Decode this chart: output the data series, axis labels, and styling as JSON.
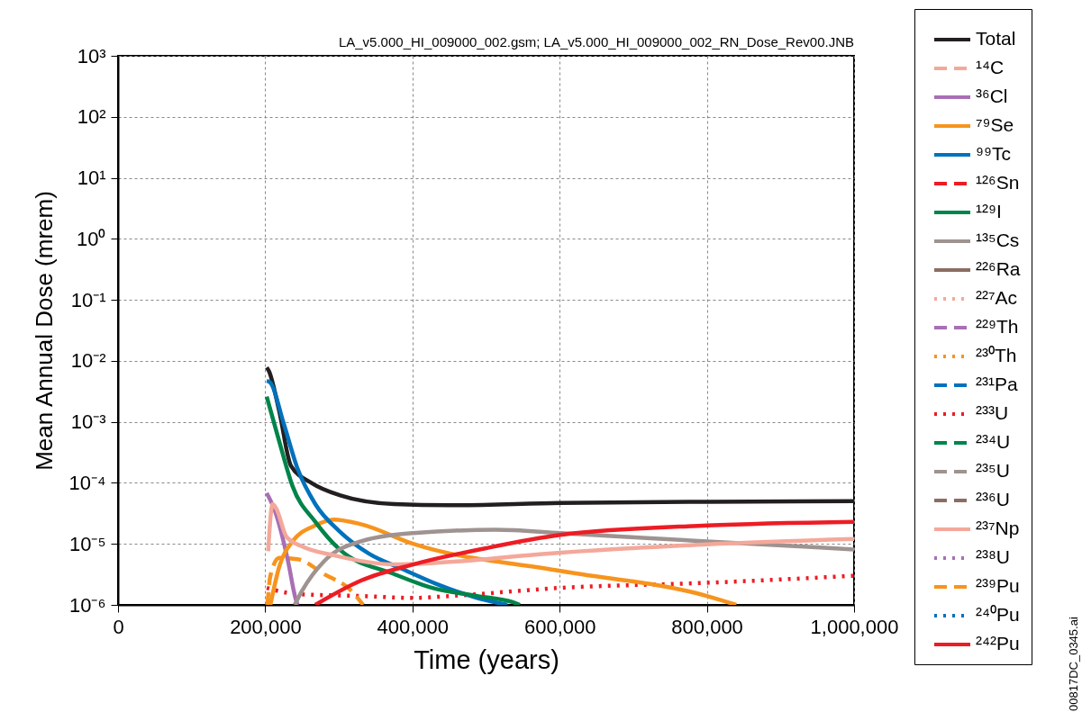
{
  "chart_data": {
    "type": "line",
    "xlabel": "Time (years)",
    "ylabel": "Mean Annual Dose (mrem)",
    "annotations": [
      "LA_v5.000_HI_009000_002.gsm; LA_v5.000_HI_009000_002_RN_Dose_Rev00.JNB",
      "00817DC_0345.ai"
    ],
    "log": "y",
    "grid": true,
    "legend": "right",
    "xlim": [
      0,
      1000000
    ],
    "xticks": [
      0,
      {
        "value": 200000,
        "label": "200,000"
      },
      {
        "value": 400000,
        "label": "400,000"
      },
      {
        "value": 600000,
        "label": "600,000"
      },
      {
        "value": 800000,
        "label": "800,000"
      },
      {
        "value": 1000000,
        "label": "1,000,000"
      }
    ],
    "ylim": [
      1e-06,
      1000
    ],
    "yticks": [
      {
        "value": 1000,
        "label": "10³"
      },
      {
        "value": 100,
        "label": "10²"
      },
      {
        "value": 10,
        "label": "10¹"
      },
      {
        "value": 1,
        "label": "10⁰"
      },
      {
        "value": 0.1,
        "label": "10⁻¹"
      },
      {
        "value": 0.01,
        "label": "10⁻²"
      },
      {
        "value": 0.001,
        "label": "10⁻³"
      },
      {
        "value": 0.0001,
        "label": "10⁻⁴"
      },
      {
        "value": 1e-05,
        "label": "10⁻⁵"
      },
      {
        "value": 1e-06,
        "label": "10⁻⁶"
      }
    ],
    "series": [
      {
        "name": "Total",
        "color": "#231f20",
        "line_style": "solid",
        "x": [
          202000,
          205000,
          219000,
          235000,
          264000,
          301000,
          375000,
          450000,
          601000,
          800000,
          1000000
        ],
        "values": [
          0.0078,
          0.0068,
          0.0015,
          0.00019,
          9.8e-05,
          6.3e-05,
          4.5e-05,
          4.3e-05,
          4.7e-05,
          4.9e-05,
          5e-05
        ]
      },
      {
        "name": "¹⁴C",
        "color": "#f4a89a",
        "line_style": "dashed"
      },
      {
        "name": "³⁶Cl",
        "color": "#a86fb5",
        "line_style": "solid",
        "x": [
          202000,
          213000,
          231000,
          241000,
          244000
        ],
        "values": [
          6.8e-05,
          3.5e-05,
          5.2e-06,
          1.3e-06,
          1e-06
        ]
      },
      {
        "name": "⁷⁹Se",
        "color": "#f7941d",
        "line_style": "solid",
        "x": [
          207000,
          219000,
          237000,
          268000,
          293000,
          330000,
          401000,
          601000,
          800000,
          840000
        ],
        "values": [
          1e-06,
          4.2e-06,
          1.1e-05,
          2e-05,
          2.5e-05,
          2.1e-05,
          1e-05,
          3.6e-06,
          1.4e-06,
          1e-06
        ]
      },
      {
        "name": "⁹⁹Tc",
        "color": "#0072bc",
        "line_style": "solid",
        "x": [
          202000,
          207000,
          225000,
          244000,
          268000,
          301000,
          341000,
          386000,
          433000,
          488000,
          529000
        ],
        "values": [
          0.0047,
          0.0044,
          0.00095,
          0.00017,
          4.5e-05,
          1.6e-05,
          6.9e-06,
          3.9e-06,
          2.2e-06,
          1.3e-06,
          1e-06
        ]
      },
      {
        "name": "¹²⁶Sn",
        "color": "#ed1c24",
        "line_style": "dashed"
      },
      {
        "name": "¹²⁹I",
        "color": "#00844a",
        "line_style": "solid",
        "x": [
          202000,
          219000,
          237000,
          268000,
          301000,
          375000,
          427000,
          488000,
          537000,
          546000
        ],
        "values": [
          0.0026,
          0.00048,
          8.9e-05,
          2.3e-05,
          8.1e-06,
          3.2e-06,
          1.9e-06,
          1.4e-06,
          1.1e-06,
          1e-06
        ]
      },
      {
        "name": "¹³⁵Cs",
        "color": "#9e9390",
        "line_style": "solid",
        "x": [
          240000,
          250000,
          280000,
          330000,
          401000,
          513000,
          601000,
          800000,
          1000000
        ],
        "values": [
          1e-06,
          1.7e-06,
          5.2e-06,
          1.1e-05,
          1.5e-05,
          1.7e-05,
          1.5e-05,
          1.1e-05,
          8.1e-06
        ]
      },
      {
        "name": "²²⁶Ra",
        "color": "#8c6d62",
        "line_style": "solid"
      },
      {
        "name": "²²⁷Ac",
        "color": "#f4a89a",
        "line_style": "dotted"
      },
      {
        "name": "²²⁹Th",
        "color": "#a86fb5",
        "line_style": "dashed"
      },
      {
        "name": "²³⁰Th",
        "color": "#f7941d",
        "line_style": "dotted"
      },
      {
        "name": "²³¹Pa",
        "color": "#0072bc",
        "line_style": "dashed"
      },
      {
        "name": "²³³U",
        "color": "#ed1c24",
        "line_style": "dotted",
        "x": [
          202000,
          244000,
          330000,
          401000,
          452000,
          601000,
          800000,
          1000000
        ],
        "values": [
          1.9e-06,
          1.5e-06,
          1.4e-06,
          1.3e-06,
          1.4e-06,
          1.9e-06,
          2.3e-06,
          3e-06
        ]
      },
      {
        "name": "²³⁴U",
        "color": "#00844a",
        "line_style": "dashed"
      },
      {
        "name": "²³⁵U",
        "color": "#9e9390",
        "line_style": "dashed"
      },
      {
        "name": "²³⁶U",
        "color": "#8c6d62",
        "line_style": "dashed"
      },
      {
        "name": "²³⁷Np",
        "color": "#f4a89a",
        "line_style": "solid",
        "x": [
          204000,
          210000,
          215000,
          229000,
          250000,
          293000,
          375000,
          601000,
          800000,
          1000000
        ],
        "values": [
          7.6e-06,
          4.5e-05,
          3.8e-05,
          1.3e-05,
          9.1e-06,
          6.5e-06,
          4.6e-06,
          7.2e-06,
          9.8e-06,
          1.2e-05
        ]
      },
      {
        "name": "²³⁸U",
        "color": "#a86fb5",
        "line_style": "dotted"
      },
      {
        "name": "²³⁹Pu",
        "color": "#f7941d",
        "line_style": "dashed",
        "x": [
          203000,
          207000,
          219000,
          244000,
          280000,
          317000,
          333000
        ],
        "values": [
          1e-06,
          3e-06,
          5.9e-06,
          5.6e-06,
          3.2e-06,
          1.7e-06,
          1e-06
        ]
      },
      {
        "name": "²⁴⁰Pu",
        "color": "#0072bc",
        "line_style": "dotted"
      },
      {
        "name": "²⁴²Pu",
        "color": "#ed1c24",
        "line_style": "solid",
        "x": [
          268000,
          330000,
          401000,
          500000,
          601000,
          800000,
          1000000
        ],
        "values": [
          1e-06,
          2.5e-06,
          4.6e-06,
          8.5e-06,
          1.4e-05,
          2e-05,
          2.3e-05
        ]
      }
    ]
  }
}
